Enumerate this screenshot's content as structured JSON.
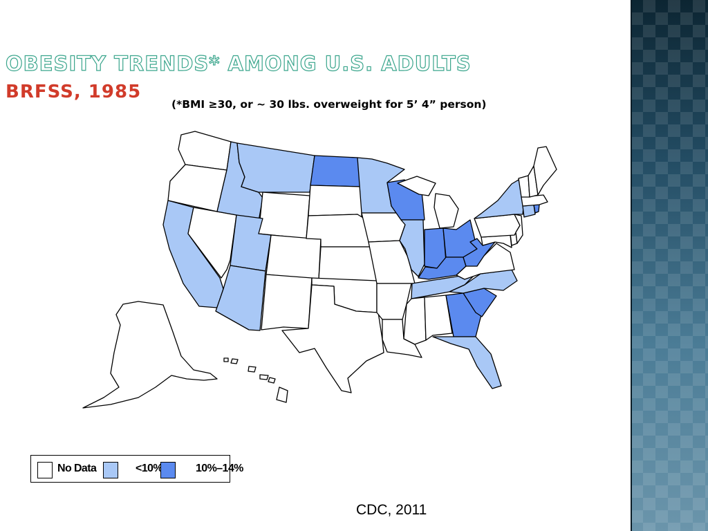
{
  "slide": {
    "title": "Obesity Trends* Among U.S. Adults",
    "subtitle": "BRFSS, 1985",
    "note": "(*BMI ≥30, or ~ 30 lbs. overweight for 5’ 4” person)",
    "source": "CDC, 2011"
  },
  "colors": {
    "no_data": "#ffffff",
    "under_10": "#a9c8f6",
    "10_14": "#5b8aef",
    "stroke": "#000000",
    "title_outline": "#3aa58c",
    "subtitle": "#d13b2a",
    "side_band": "#3a6a85"
  },
  "legend": [
    {
      "label": "No Data",
      "category": "no_data"
    },
    {
      "label": "<10%",
      "category": "under_10"
    },
    {
      "label": "10%–14%",
      "category": "10_14"
    }
  ],
  "map": {
    "state_categories": {
      "WA": "no_data",
      "OR": "no_data",
      "CA": "under_10",
      "NV": "no_data",
      "ID": "under_10",
      "MT": "under_10",
      "WY": "no_data",
      "UT": "under_10",
      "AZ": "under_10",
      "CO": "no_data",
      "NM": "no_data",
      "ND": "10_14",
      "SD": "no_data",
      "NE": "no_data",
      "KS": "no_data",
      "OK": "no_data",
      "TX": "no_data",
      "MN": "under_10",
      "IA": "no_data",
      "MO": "no_data",
      "AR": "no_data",
      "LA": "no_data",
      "WI": "10_14",
      "IL": "under_10",
      "MI": "no_data",
      "IN": "10_14",
      "OH": "10_14",
      "KY": "10_14",
      "TN": "under_10",
      "MS": "no_data",
      "AL": "no_data",
      "GA": "10_14",
      "FL": "under_10",
      "SC": "10_14",
      "NC": "under_10",
      "VA": "no_data",
      "WV": "10_14",
      "MD": "no_data",
      "DE": "no_data",
      "PA": "no_data",
      "NJ": "no_data",
      "NY": "under_10",
      "CT": "under_10",
      "RI": "10_14",
      "MA": "no_data",
      "VT": "no_data",
      "NH": "no_data",
      "ME": "no_data",
      "AK": "no_data",
      "HI": "no_data"
    }
  }
}
